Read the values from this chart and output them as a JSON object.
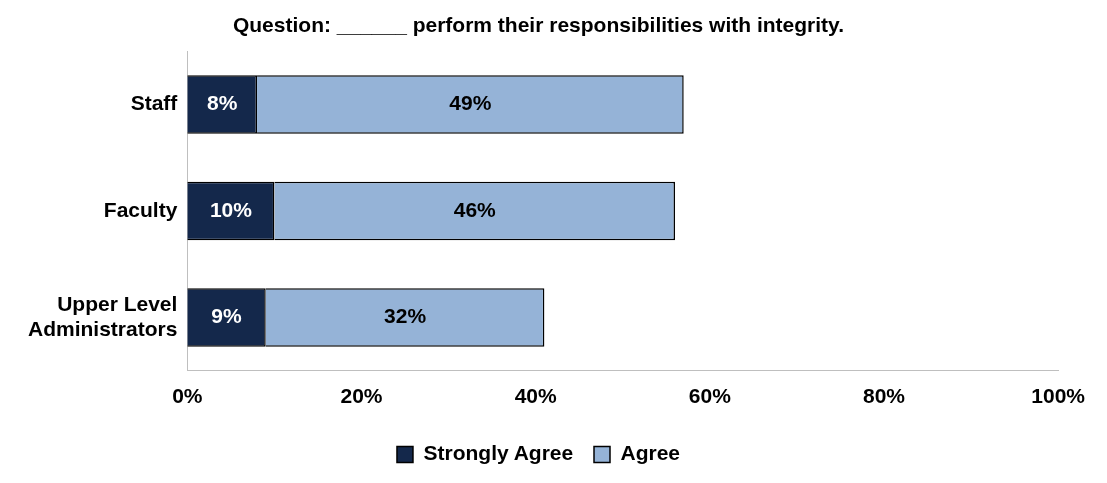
{
  "chart_data": {
    "type": "bar",
    "orientation": "horizontal",
    "stacked": true,
    "title": "Question: ______ perform their responsibilities with integrity.",
    "categories": [
      "Staff",
      "Faculty",
      "Upper Level Administrators"
    ],
    "series": [
      {
        "name": "Strongly Agree",
        "color": "#14284b",
        "values": [
          8,
          10,
          9
        ],
        "value_labels": [
          "8%",
          "10%",
          "9%"
        ]
      },
      {
        "name": "Agree",
        "color": "#95b3d7",
        "values": [
          49,
          46,
          32
        ],
        "value_labels": [
          "49%",
          "46%",
          "32%"
        ]
      }
    ],
    "xlim": [
      0,
      100
    ],
    "xticks": [
      {
        "value": 0,
        "label": "0%"
      },
      {
        "value": 20,
        "label": "20%"
      },
      {
        "value": 40,
        "label": "40%"
      },
      {
        "value": 60,
        "label": "60%"
      },
      {
        "value": 80,
        "label": "80%"
      },
      {
        "value": 100,
        "label": "100%"
      }
    ],
    "grid": false,
    "legend": "bottom"
  }
}
